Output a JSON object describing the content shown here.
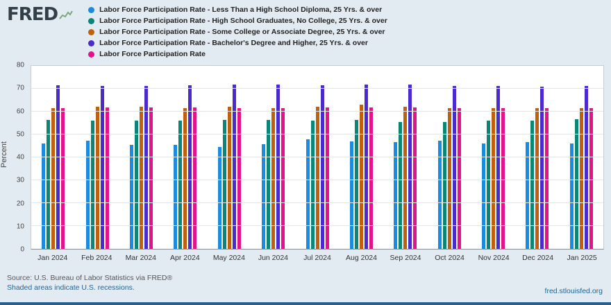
{
  "brand": {
    "logo_text": "FRED"
  },
  "chart_data": {
    "type": "bar",
    "title": "",
    "xlabel": "",
    "ylabel": "Percent",
    "ylim": [
      0,
      80
    ],
    "yticks": [
      0,
      10,
      20,
      30,
      40,
      50,
      60,
      70,
      80
    ],
    "grid": true,
    "legend_position": "top",
    "categories": [
      "Jan 2024",
      "Feb 2024",
      "Mar 2024",
      "Apr 2024",
      "May 2024",
      "Jun 2024",
      "Jul 2024",
      "Aug 2024",
      "Sep 2024",
      "Oct 2024",
      "Nov 2024",
      "Dec 2024",
      "Jan 2025"
    ],
    "series": [
      {
        "name": "Labor Force Participation Rate - Less Than a High School Diploma, 25 Yrs. & over",
        "color": "#1a8be0",
        "values": [
          46.1,
          47.2,
          45.5,
          45.6,
          44.7,
          45.7,
          48.0,
          46.9,
          46.6,
          47.2,
          46.1,
          46.6,
          46.2
        ]
      },
      {
        "name": "Labor Force Participation Rate - High School Graduates, No College, 25 Yrs. & over",
        "color": "#0a8578",
        "values": [
          56.3,
          56.1,
          56.2,
          56.0,
          56.4,
          56.5,
          56.0,
          56.5,
          55.6,
          55.6,
          56.1,
          56.2,
          56.6
        ]
      },
      {
        "name": "Labor Force Participation Rate - Some College or Associate Degree, 25 Yrs. & over",
        "color": "#c05f0e",
        "values": [
          61.6,
          62.2,
          62.0,
          61.6,
          62.1,
          61.5,
          62.0,
          62.9,
          62.1,
          61.5,
          61.6,
          61.6,
          61.6
        ]
      },
      {
        "name": "Labor Force Participation Rate - Bachelor's Degree and Higher, 25 Yrs. & over",
        "color": "#4b2bcd",
        "values": [
          71.5,
          71.2,
          71.1,
          71.6,
          71.7,
          71.7,
          71.6,
          71.7,
          71.7,
          71.2,
          71.2,
          70.8,
          71.1
        ]
      },
      {
        "name": "Labor Force Participation Rate",
        "color": "#e4128b",
        "values": [
          61.6,
          61.7,
          61.7,
          61.8,
          61.6,
          61.6,
          61.7,
          61.8,
          61.8,
          61.6,
          61.6,
          61.6,
          61.6
        ]
      }
    ]
  },
  "footer": {
    "source": "Source: U.S. Bureau of Labor Statistics via FRED®",
    "recessions_note": "Shaded areas indicate U.S. recessions.",
    "site_link": "fred.stlouisfed.org"
  }
}
